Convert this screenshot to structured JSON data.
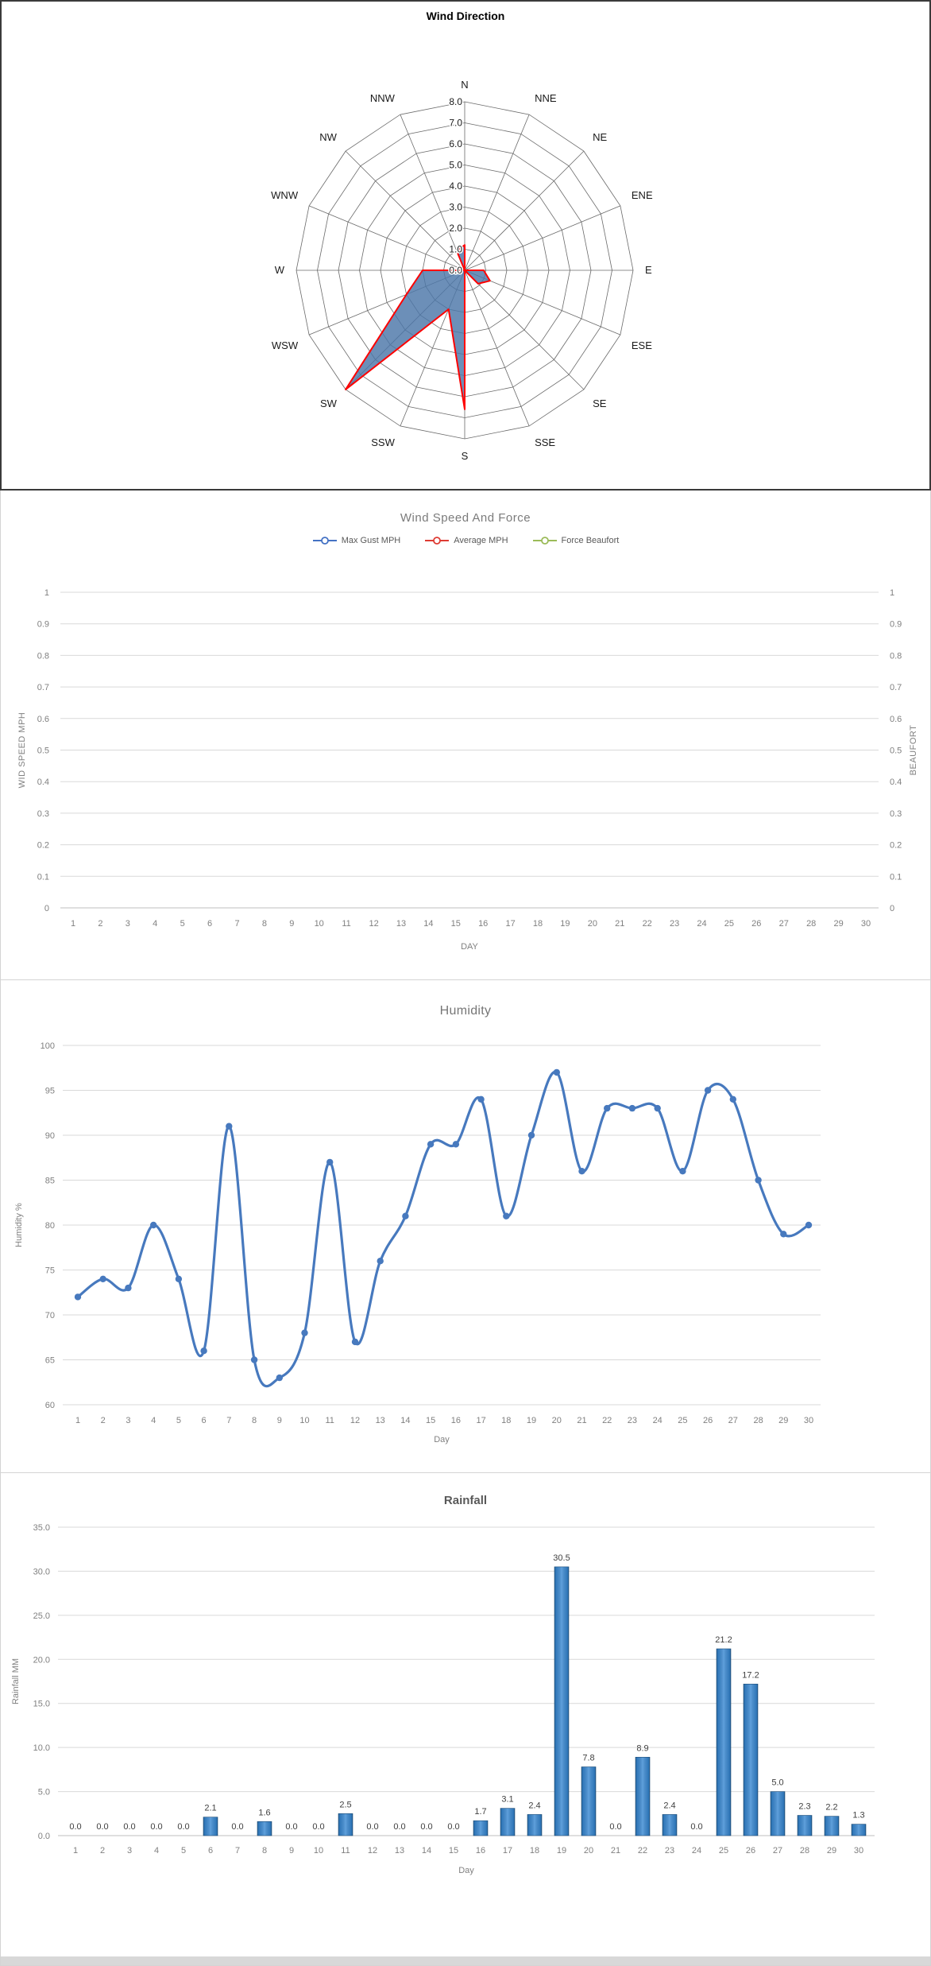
{
  "chart_data": [
    {
      "type": "radar",
      "title": "Wind Direction",
      "categories": [
        "N",
        "NNE",
        "NE",
        "ENE",
        "E",
        "ESE",
        "SE",
        "SSE",
        "S",
        "SSW",
        "SW",
        "WSW",
        "W",
        "WNW",
        "NW",
        "NNW"
      ],
      "values": [
        1.2,
        0,
        0,
        0,
        0.9,
        1.3,
        0.9,
        0,
        6.6,
        2.0,
        8.0,
        3.0,
        2.0,
        0,
        0,
        1.0
      ],
      "r_ticks": [
        "0.0",
        "1.0",
        "2.0",
        "3.0",
        "4.0",
        "5.0",
        "6.0",
        "7.0",
        "8.0"
      ],
      "rlim": [
        0,
        8
      ],
      "fill_color": "#4C76A8",
      "stroke_color": "#FF0000",
      "grid": true,
      "legend_position": "none"
    },
    {
      "type": "line",
      "title": "Wind Speed And Force",
      "x": [
        1,
        2,
        3,
        4,
        5,
        6,
        7,
        8,
        9,
        10,
        11,
        12,
        13,
        14,
        15,
        16,
        17,
        18,
        19,
        20,
        21,
        22,
        23,
        24,
        25,
        26,
        27,
        28,
        29,
        30
      ],
      "series": [
        {
          "name": "Max Gust MPH",
          "color": "#4472C4",
          "values": []
        },
        {
          "name": "Average MPH",
          "color": "#DE3B33",
          "values": []
        },
        {
          "name": "Force Beaufort",
          "color": "#9BBB59",
          "values": []
        }
      ],
      "xlabel": "DAY",
      "ylabel_left": "WID SPEED MPH",
      "ylabel_right": "BEAUFORT",
      "ylim": [
        0,
        1
      ],
      "y_ticks": [
        "1",
        "0.9",
        "0.8",
        "0.7",
        "0.6",
        "0.5",
        "0.4",
        "0.3",
        "0.2",
        "0.1",
        "0"
      ],
      "grid": true,
      "legend_position": "top",
      "note_no_data_plotted": true
    },
    {
      "type": "line",
      "title": "Humidity",
      "x": [
        1,
        2,
        3,
        4,
        5,
        6,
        7,
        8,
        9,
        10,
        11,
        12,
        13,
        14,
        15,
        16,
        17,
        18,
        19,
        20,
        21,
        22,
        23,
        24,
        25,
        26,
        27,
        28,
        29,
        30
      ],
      "values": [
        72,
        74,
        73,
        80,
        74,
        66,
        91,
        65,
        63,
        68,
        87,
        67,
        76,
        81,
        89,
        89,
        94,
        81,
        90,
        97,
        86,
        93,
        93,
        93,
        86,
        95,
        94,
        85,
        79,
        80
      ],
      "xlabel": "Day",
      "ylabel": "Humidity %",
      "ylim": [
        60,
        100
      ],
      "y_ticks": [
        "60",
        "65",
        "70",
        "75",
        "80",
        "85",
        "90",
        "95",
        "100"
      ],
      "line_color": "#4779BE",
      "smooth": true,
      "markers": true,
      "grid": true,
      "legend_position": "none"
    },
    {
      "type": "bar",
      "title": "Rainfall",
      "x": [
        1,
        2,
        3,
        4,
        5,
        6,
        7,
        8,
        9,
        10,
        11,
        12,
        13,
        14,
        15,
        16,
        17,
        18,
        19,
        20,
        21,
        22,
        23,
        24,
        25,
        26,
        27,
        28,
        29,
        30
      ],
      "values": [
        0.0,
        0.0,
        0.0,
        0.0,
        0.0,
        2.1,
        0.0,
        1.6,
        0.0,
        0.0,
        2.5,
        0.0,
        0.0,
        0.0,
        0.0,
        1.7,
        3.1,
        2.4,
        30.5,
        7.8,
        0.0,
        8.9,
        2.4,
        0.0,
        21.2,
        17.2,
        5.0,
        2.3,
        2.2,
        1.3
      ],
      "data_labels": [
        "0.0",
        "0.0",
        "0.0",
        "0.0",
        "0.0",
        "2.1",
        "0.0",
        "1.6",
        "0.0",
        "0.0",
        "2.5",
        "0.0",
        "0.0",
        "0.0",
        "0.0",
        "1.7",
        "3.1",
        "2.4",
        "30.5",
        "7.8",
        "0.0",
        "8.9",
        "2.4",
        "0.0",
        "21.2",
        "17.2",
        "5.0",
        "2.3",
        "2.2",
        "1.3"
      ],
      "xlabel": "Day",
      "ylabel": "Rainfall MM",
      "ylim": [
        0,
        35
      ],
      "y_ticks": [
        "0.0",
        "5.0",
        "10.0",
        "15.0",
        "20.0",
        "25.0",
        "30.0",
        "35.0"
      ],
      "bar_color_edge": "#1E4E79",
      "bar_color_mid": "#2E75B6",
      "bar_color_center": "#5FA0DB",
      "grid": true,
      "legend_position": "none"
    }
  ]
}
